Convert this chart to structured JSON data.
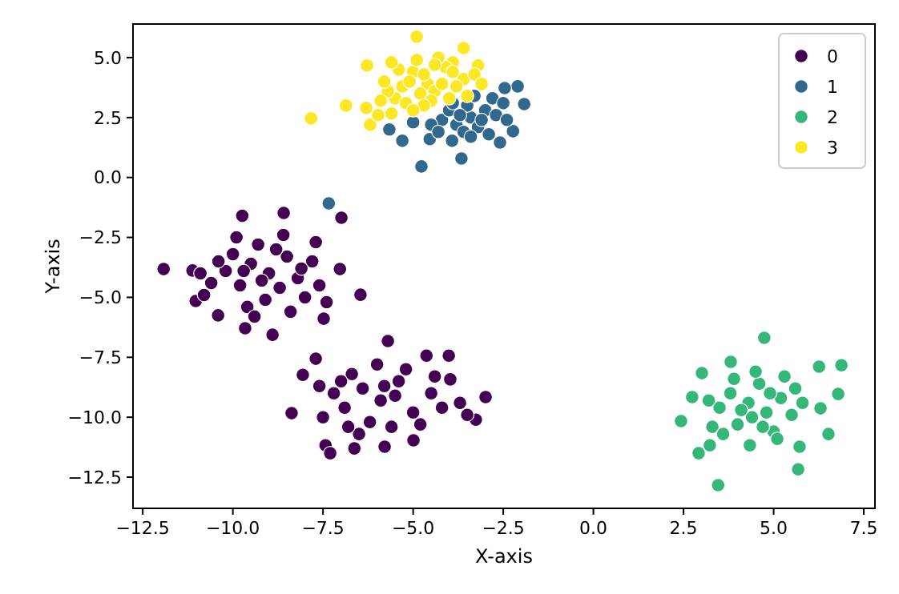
{
  "chart_data": {
    "type": "scatter",
    "xlabel": "X-axis",
    "ylabel": "Y-axis",
    "marker": "circle",
    "legend": "top right",
    "grid": false,
    "xlim": [
      -12.77,
      7.81
    ],
    "ylim": [
      -13.8,
      6.4
    ],
    "xticks": [
      {
        "value": -12.5,
        "label": "−12.5"
      },
      {
        "value": -10,
        "label": "−10.0"
      },
      {
        "value": -7.5,
        "label": "−7.5"
      },
      {
        "value": -5,
        "label": "−5.0"
      },
      {
        "value": -2.5,
        "label": "−2.5"
      },
      {
        "value": 0,
        "label": "0.0"
      },
      {
        "value": 2.5,
        "label": "2.5"
      },
      {
        "value": 5,
        "label": "5.0"
      },
      {
        "value": 7.5,
        "label": "7.5"
      }
    ],
    "yticks": [
      {
        "value": -12.5,
        "label": "−12.5"
      },
      {
        "value": -10,
        "label": "−10.0"
      },
      {
        "value": -7.5,
        "label": "−7.5"
      },
      {
        "value": -5,
        "label": "−5.0"
      },
      {
        "value": -2.5,
        "label": "−2.5"
      },
      {
        "value": 0,
        "label": "0.0"
      },
      {
        "value": 2.5,
        "label": "2.5"
      },
      {
        "value": 5,
        "label": "5.0"
      }
    ],
    "series": [
      {
        "name": "0",
        "color": "#440154",
        "x": [
          -11.92,
          -9.74,
          -8.59,
          -6.99,
          -6.46,
          -11.03,
          -10.41,
          -9.66,
          -8.9,
          -7.48,
          -7.03,
          -11.12,
          -9.0,
          -9.5,
          -8.5,
          -9.8,
          -10.2,
          -8.7,
          -9.3,
          -10.6,
          -8.2,
          -9.1,
          -7.8,
          -10.0,
          -8.0,
          -9.6,
          -10.8,
          -8.8,
          -7.6,
          -9.9,
          -8.4,
          -10.4,
          -9.2,
          -8.6,
          -7.7,
          -10.9,
          -9.4,
          -7.4,
          -8.1,
          -9.7,
          -5.7,
          -8.37,
          -7.43,
          -7.3,
          -6.63,
          -5.79,
          -4.01,
          -3.97,
          -2.99,
          -3.26,
          -7.7,
          -8.06,
          -4.63,
          -4.99,
          -5.9,
          -6.4,
          -5.4,
          -6.9,
          -5.0,
          -6.2,
          -7.2,
          -4.5,
          -5.6,
          -6.7,
          -4.2,
          -7.5,
          -5.2,
          -6.0,
          -3.7,
          -6.5,
          -7.6,
          -4.8,
          -5.5,
          -3.5,
          -6.8,
          -4.4,
          -7.0,
          -5.8
        ],
        "values": [
          -3.82,
          -1.6,
          -1.48,
          -1.68,
          -4.89,
          -5.15,
          -5.75,
          -6.29,
          -6.56,
          -5.89,
          -3.82,
          -3.88,
          -4.0,
          -3.6,
          -3.3,
          -4.5,
          -3.9,
          -4.6,
          -2.8,
          -4.4,
          -4.2,
          -5.1,
          -3.5,
          -3.2,
          -5.0,
          -5.4,
          -4.9,
          -3.0,
          -4.5,
          -2.5,
          -5.6,
          -3.5,
          -4.3,
          -2.4,
          -2.7,
          -4.0,
          -5.8,
          -5.2,
          -3.8,
          -3.9,
          -6.82,
          -9.83,
          -11.17,
          -11.5,
          -11.3,
          -11.23,
          -7.43,
          -8.42,
          -9.16,
          -10.1,
          -7.56,
          -8.23,
          -7.43,
          -10.96,
          -9.3,
          -8.8,
          -8.5,
          -9.6,
          -9.8,
          -10.2,
          -9.0,
          -9.0,
          -10.4,
          -8.2,
          -9.6,
          -10.0,
          -8.0,
          -7.8,
          -9.4,
          -10.7,
          -8.7,
          -10.3,
          -9.1,
          -9.9,
          -10.4,
          -8.3,
          -8.5,
          -8.7
        ]
      },
      {
        "name": "1",
        "color": "#31688e",
        "x": [
          -4.77,
          -3.66,
          -5.66,
          -5.3,
          -4.54,
          -3.92,
          -2.59,
          -2.23,
          -1.92,
          -2.1,
          -2.46,
          -7.34,
          -3.4,
          -3.0,
          -3.8,
          -4.2,
          -3.5,
          -2.8,
          -3.2,
          -4.0,
          -4.5,
          -3.6,
          -2.7,
          -3.3,
          -3.9,
          -2.5,
          -3.1,
          -4.3,
          -3.7,
          -2.9,
          -3.4,
          -2.4,
          -5.0
        ],
        "values": [
          0.46,
          0.79,
          2.0,
          1.53,
          1.6,
          1.53,
          1.46,
          1.93,
          3.06,
          3.8,
          3.73,
          -1.08,
          2.5,
          2.8,
          2.2,
          2.4,
          3.0,
          3.3,
          2.1,
          2.8,
          2.2,
          1.9,
          2.6,
          3.4,
          3.1,
          3.1,
          2.4,
          1.9,
          2.6,
          1.8,
          1.7,
          2.4,
          2.3
        ]
      },
      {
        "name": "2",
        "color": "#35b779",
        "x": [
          4.74,
          3.46,
          5.68,
          2.92,
          2.43,
          6.88,
          6.79,
          6.52,
          6.26,
          6.3,
          3.23,
          4.34,
          5.72,
          2.74,
          3.01,
          3.81,
          4.3,
          4.8,
          3.8,
          5.2,
          4.0,
          5.0,
          3.5,
          4.6,
          5.5,
          3.9,
          4.4,
          5.3,
          3.3,
          4.9,
          5.8,
          4.1,
          3.6,
          5.6,
          4.7,
          3.2,
          4.5,
          5.1
        ],
        "values": [
          -6.69,
          -12.83,
          -12.17,
          -11.5,
          -10.16,
          -7.83,
          -9.03,
          -10.7,
          -7.89,
          -9.63,
          -11.17,
          -11.17,
          -11.23,
          -9.16,
          -8.16,
          -7.69,
          -9.4,
          -9.8,
          -9.0,
          -9.2,
          -10.3,
          -10.6,
          -9.6,
          -8.6,
          -9.9,
          -8.4,
          -10.0,
          -8.3,
          -10.4,
          -9.0,
          -9.4,
          -9.7,
          -10.7,
          -8.8,
          -10.4,
          -9.3,
          -8.1,
          -10.9
        ]
      },
      {
        "name": "3",
        "color": "#fde725",
        "x": [
          -4.9,
          -6.28,
          -7.83,
          -6.86,
          -6.19,
          -5.97,
          -5.6,
          -3.2,
          -4.6,
          -5.0,
          -3.9,
          -4.8,
          -5.3,
          -5.5,
          -4.4,
          -3.6,
          -3.3,
          -4.1,
          -5.1,
          -4.7,
          -3.8,
          -5.7,
          -5.2,
          -4.5,
          -3.5,
          -4.0,
          -5.9,
          -6.3,
          -4.3,
          -3.6,
          -4.9,
          -5.4,
          -3.1,
          -4.7,
          -5.0,
          -5.8,
          -4.2,
          -3.9,
          -4.4,
          -5.6
        ],
        "values": [
          5.87,
          4.67,
          2.47,
          3.0,
          2.2,
          2.6,
          2.67,
          4.67,
          3.9,
          4.4,
          4.8,
          3.5,
          3.8,
          3.3,
          3.6,
          4.1,
          4.3,
          4.6,
          4.0,
          4.3,
          3.8,
          3.6,
          3.1,
          3.2,
          3.4,
          3.3,
          3.2,
          2.9,
          5.0,
          5.4,
          4.9,
          4.5,
          3.9,
          3.0,
          2.8,
          4.0,
          3.9,
          4.4,
          4.7,
          4.8
        ]
      }
    ]
  }
}
